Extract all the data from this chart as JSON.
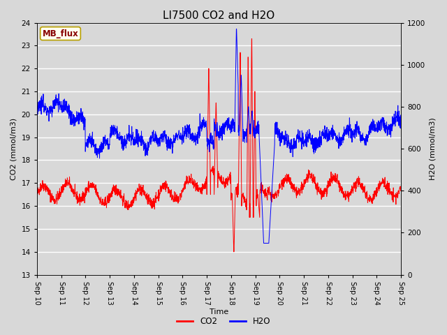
{
  "title": "LI7500 CO2 and H2O",
  "xlabel": "Time",
  "ylabel_left": "CO2 (mmol/m3)",
  "ylabel_right": "H2O (mmol/m3)",
  "co2_ylim": [
    13.0,
    24.0
  ],
  "h2o_ylim": [
    0,
    1200
  ],
  "co2_yticks": [
    13.0,
    14.0,
    15.0,
    16.0,
    17.0,
    18.0,
    19.0,
    20.0,
    21.0,
    22.0,
    23.0,
    24.0
  ],
  "h2o_yticks": [
    0,
    200,
    400,
    600,
    800,
    1000,
    1200
  ],
  "x_labels": [
    "Sep 10",
    "Sep 11",
    "Sep 12",
    "Sep 13",
    "Sep 14",
    "Sep 15",
    "Sep 16",
    "Sep 17",
    "Sep 18",
    "Sep 19",
    "Sep 20",
    "Sep 21",
    "Sep 22",
    "Sep 23",
    "Sep 24",
    "Sep 25"
  ],
  "co2_color": "#ff0000",
  "h2o_color": "#0000ff",
  "bg_color": "#d8d8d8",
  "annotation_text": "MB_flux",
  "annotation_fg": "#880000",
  "annotation_bg": "#fffff0",
  "annotation_border": "#b8a000",
  "title_fontsize": 11,
  "label_fontsize": 8,
  "tick_fontsize": 7.5
}
